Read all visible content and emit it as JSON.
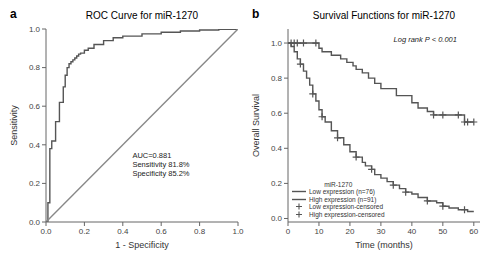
{
  "chart_data": [
    {
      "type": "line",
      "panel_label": "a",
      "title": "ROC Curve for miR-1270",
      "x_label": "1 - Specificity",
      "y_label": "Sensitivity",
      "xlim": [
        0,
        1
      ],
      "ylim": [
        0,
        1
      ],
      "xticks": [
        {
          "value": 0,
          "label": "0.0"
        },
        0.2,
        0.4,
        0.6,
        0.8,
        {
          "value": 1,
          "label": "1.0"
        }
      ],
      "yticks": [
        {
          "value": 0,
          "label": "0.0"
        },
        0.2,
        0.4,
        0.6,
        0.8,
        {
          "value": 1,
          "label": "1.0"
        }
      ],
      "annotation": "AUC=0.881\nSensitivity 81.8%\nSpecificity 85.2%",
      "series": [
        {
          "type": "step",
          "color": "#555555",
          "line_style": "solid",
          "x": [
            0.0,
            0.01,
            0.02,
            0.03,
            0.05,
            0.07,
            0.09,
            0.1,
            0.11,
            0.12,
            0.13,
            0.14,
            0.15,
            0.16,
            0.17,
            0.18,
            0.2,
            0.22,
            0.25,
            0.3,
            0.35,
            0.4,
            0.5,
            0.6,
            0.7,
            0.8,
            0.9,
            1.0
          ],
          "values": [
            0.0,
            0.1,
            0.38,
            0.42,
            0.52,
            0.62,
            0.7,
            0.76,
            0.8,
            0.82,
            0.83,
            0.84,
            0.85,
            0.86,
            0.87,
            0.875,
            0.89,
            0.9,
            0.92,
            0.94,
            0.955,
            0.963,
            0.975,
            0.983,
            0.99,
            0.995,
            0.998,
            1.0
          ]
        },
        {
          "type": "line",
          "color": "#888888",
          "line_style": "solid",
          "x": [
            0,
            1
          ],
          "values": [
            0,
            1
          ]
        }
      ]
    },
    {
      "type": "line",
      "panel_label": "b",
      "title": "Survival Functions for miR-1270",
      "x_label": "Time (months)",
      "y_label": "Overall Survival",
      "xlim": [
        0,
        62
      ],
      "ylim": [
        -0.02,
        1.08
      ],
      "xticks": [
        0,
        10,
        20,
        30,
        40,
        50,
        60
      ],
      "yticks": [
        {
          "value": 0,
          "label": "0.0"
        },
        0.2,
        0.4,
        0.6,
        0.8,
        {
          "value": 1,
          "label": "1.0"
        }
      ],
      "annotation": "Log rank P < 0.001",
      "legend": "lower left",
      "legend_title": "miR-1270",
      "series": [
        {
          "name": "Low expression (n=76)",
          "type": "step",
          "color": "#555555",
          "line_style": "solid",
          "x": [
            0,
            1,
            2,
            3,
            5,
            6,
            8,
            9,
            10,
            11,
            14,
            17,
            19,
            21,
            22,
            24,
            26,
            28,
            30,
            35,
            40,
            42,
            45,
            47,
            48,
            50,
            52,
            55,
            57,
            58,
            60
          ],
          "values": [
            1.0,
            1.0,
            1.0,
            1.0,
            1.0,
            1.0,
            1.0,
            1.0,
            0.97,
            0.95,
            0.93,
            0.91,
            0.89,
            0.87,
            0.85,
            0.83,
            0.8,
            0.77,
            0.74,
            0.7,
            0.66,
            0.63,
            0.61,
            0.59,
            0.59,
            0.59,
            0.59,
            0.59,
            0.55,
            0.55,
            0.55
          ]
        },
        {
          "name": "High expression (n=91)",
          "type": "step",
          "color": "#555555",
          "line_style": "solid",
          "x": [
            0,
            1,
            2,
            3,
            4,
            5,
            6,
            7,
            8,
            9,
            10,
            11,
            12,
            14,
            16,
            18,
            20,
            22,
            24,
            25,
            27,
            28,
            30,
            32,
            34,
            36,
            38,
            40,
            42,
            45,
            48,
            50,
            52,
            55,
            57,
            58,
            60
          ],
          "values": [
            1.0,
            0.98,
            0.95,
            0.91,
            0.88,
            0.84,
            0.8,
            0.76,
            0.71,
            0.67,
            0.62,
            0.58,
            0.55,
            0.5,
            0.46,
            0.42,
            0.38,
            0.35,
            0.32,
            0.3,
            0.28,
            0.25,
            0.23,
            0.21,
            0.19,
            0.17,
            0.15,
            0.14,
            0.12,
            0.1,
            0.09,
            0.07,
            0.06,
            0.05,
            0.05,
            0.04,
            0.04
          ]
        },
        {
          "name": "Low expression-censored",
          "type": "scatter",
          "marker": "+",
          "color": "#555555",
          "x": [
            1,
            2,
            3,
            5,
            9,
            47,
            50,
            55,
            57,
            58,
            60
          ],
          "values": [
            1.0,
            1.0,
            1.0,
            1.0,
            1.0,
            0.59,
            0.59,
            0.59,
            0.55,
            0.55,
            0.55
          ]
        },
        {
          "name": "High expression-censored",
          "type": "scatter",
          "marker": "+",
          "color": "#555555",
          "x": [
            4,
            8,
            11,
            16,
            22,
            27,
            34,
            38,
            45,
            50,
            57
          ],
          "values": [
            0.88,
            0.71,
            0.58,
            0.46,
            0.35,
            0.28,
            0.19,
            0.15,
            0.1,
            0.07,
            0.05
          ]
        }
      ]
    }
  ]
}
